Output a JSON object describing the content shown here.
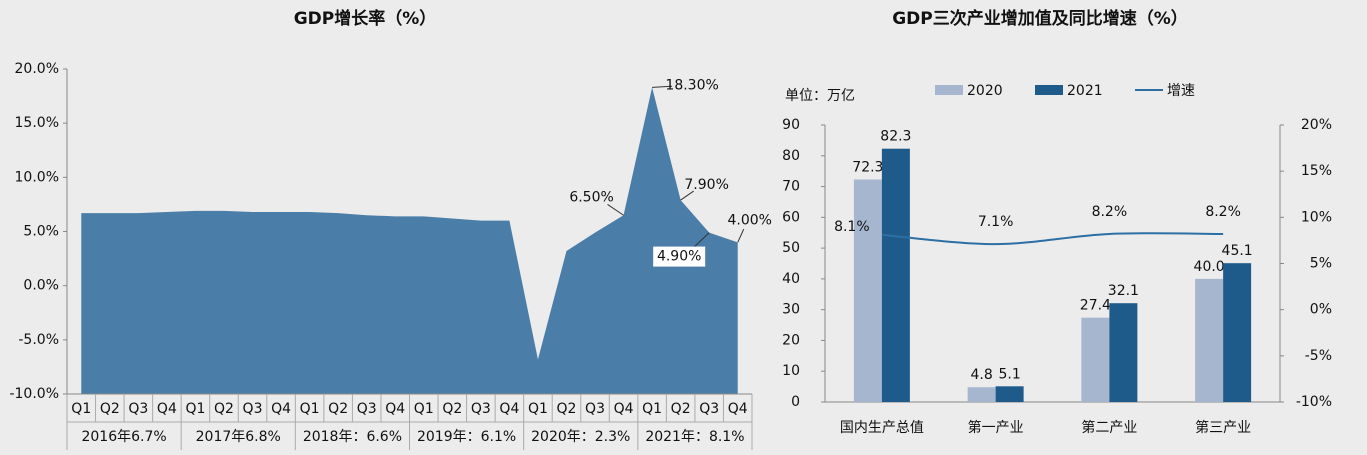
{
  "chart_data": [
    {
      "type": "area",
      "title": "GDP增长率（%）",
      "categories": [
        "Q1",
        "Q2",
        "Q3",
        "Q4",
        "Q1",
        "Q2",
        "Q3",
        "Q4",
        "Q1",
        "Q2",
        "Q3",
        "Q4",
        "Q1",
        "Q2",
        "Q3",
        "Q4",
        "Q1",
        "Q2",
        "Q3",
        "Q4",
        "Q1",
        "Q2",
        "Q3",
        "Q4"
      ],
      "groups": [
        "2016年6.7%",
        "2017年6.8%",
        "2018年：6.6%",
        "2019年：6.1%",
        "2020年：2.3%",
        "2021年：8.1%"
      ],
      "values": [
        6.7,
        6.7,
        6.7,
        6.8,
        6.9,
        6.9,
        6.8,
        6.8,
        6.8,
        6.7,
        6.5,
        6.4,
        6.4,
        6.2,
        6.0,
        6.0,
        -6.8,
        3.2,
        4.9,
        6.5,
        18.3,
        7.9,
        4.9,
        4.0
      ],
      "value_labels": [
        null,
        null,
        null,
        null,
        null,
        null,
        null,
        null,
        null,
        null,
        null,
        null,
        null,
        null,
        null,
        null,
        null,
        null,
        null,
        "6.50%",
        "18.30%",
        "7.90%",
        "4.90%",
        "4.00%"
      ],
      "color": "#4a7ea8",
      "ylim": [
        -10,
        20
      ],
      "yticks": [
        {
          "value": -10,
          "label": "-10.0%"
        },
        {
          "value": -5,
          "label": "-5.0%"
        },
        {
          "value": 0,
          "label": "0.0%"
        },
        {
          "value": 5,
          "label": "5.0%"
        },
        {
          "value": 10,
          "label": "10.0%"
        },
        {
          "value": 15,
          "label": "15.0%"
        },
        {
          "value": 20,
          "label": "20.0%"
        }
      ]
    },
    {
      "type": "bar-line",
      "title": "GDP三次产业增加值及同比增速（%）",
      "unit_label": "单位：万亿",
      "categories": [
        "国内生产总值",
        "第一产业",
        "第二产业",
        "第三产业"
      ],
      "series": [
        {
          "name": "2020",
          "color": "#a6b6cf",
          "values": [
            72.3,
            4.8,
            27.4,
            40.0
          ],
          "value_labels": [
            "72.3",
            "4.8",
            "27.4",
            "40.0"
          ]
        },
        {
          "name": "2021",
          "color": "#1f5b8a",
          "values": [
            82.3,
            5.1,
            32.1,
            45.1
          ]
        },
        {
          "name": "增速",
          "color": "#2e6fa3",
          "axis": "y2",
          "values": [
            8.1,
            7.1,
            8.2,
            8.2
          ],
          "value_labels": [
            "8.1%",
            "7.1%",
            "8.2%",
            "8.2%"
          ]
        }
      ],
      "ylim": [
        0,
        90
      ],
      "yticks": [
        0,
        10,
        20,
        30,
        40,
        50,
        60,
        70,
        80,
        90
      ],
      "y2lim": [
        -10,
        20
      ],
      "y2ticks": [
        {
          "value": -10,
          "label": "-10%"
        },
        {
          "value": -5,
          "label": "-5%"
        },
        {
          "value": 0,
          "label": "0%"
        },
        {
          "value": 5,
          "label": "5%"
        },
        {
          "value": 10,
          "label": "10%"
        },
        {
          "value": 15,
          "label": "15%"
        },
        {
          "value": 20,
          "label": "20%"
        }
      ]
    }
  ]
}
